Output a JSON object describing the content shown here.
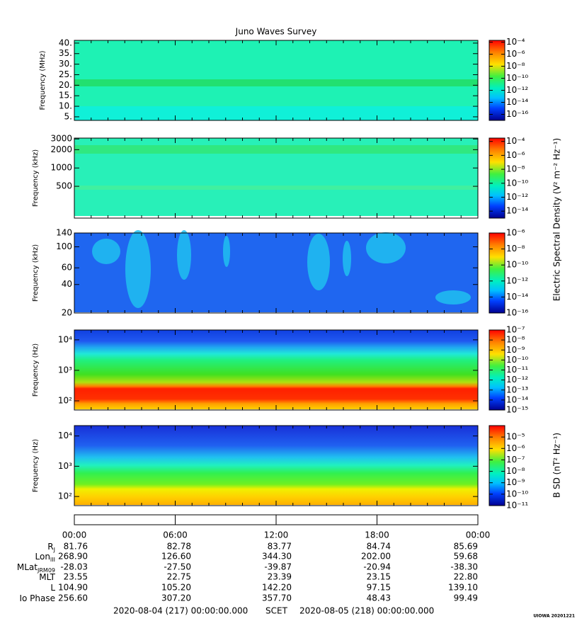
{
  "chart_data": {
    "type": "spectrogram",
    "title": "Juno Waves Survey",
    "xlim": [
      0,
      24
    ],
    "xticks": [
      {
        "value": 0,
        "label": "00:00"
      },
      {
        "value": 6,
        "label": "06:00"
      },
      {
        "value": 12,
        "label": "12:00"
      },
      {
        "value": 18,
        "label": "18:00"
      },
      {
        "value": 24,
        "label": "00:00"
      }
    ],
    "panels": [
      {
        "ylabel": "Frequency (MHz)",
        "ylog": false,
        "ylim": [
          3.3,
          41.3
        ],
        "yticks": [
          {
            "value": 5,
            "label": "5."
          },
          {
            "value": 10,
            "label": "10."
          },
          {
            "value": 15,
            "label": "15."
          },
          {
            "value": 20,
            "label": "20."
          },
          {
            "value": 25,
            "label": "25."
          },
          {
            "value": 30,
            "label": "30."
          },
          {
            "value": 35,
            "label": "35."
          },
          {
            "value": 40,
            "label": "40."
          }
        ],
        "clim": [
          1e-17,
          0.0002
        ],
        "cticks": [
          {
            "value": 0.0001,
            "label": "10⁻⁴"
          },
          {
            "value": 1e-06,
            "label": "10⁻⁶"
          },
          {
            "value": 1e-08,
            "label": "10⁻⁸"
          },
          {
            "value": 1e-10,
            "label": "10⁻¹⁰"
          },
          {
            "value": 1e-12,
            "label": "10⁻¹²"
          },
          {
            "value": 1e-14,
            "label": "10⁻¹⁴"
          },
          {
            "value": 1e-16,
            "label": "10⁻¹⁶"
          }
        ]
      },
      {
        "ylabel": "Frequency (kHz)",
        "ylog": true,
        "ylim": [
          150,
          3100
        ],
        "yticks": [
          500,
          1000,
          2000,
          3000
        ],
        "clim": [
          1e-15,
          0.0003
        ],
        "cticks": [
          {
            "value": 0.0001,
            "label": "10⁻⁴"
          },
          {
            "value": 1e-06,
            "label": "10⁻⁶"
          },
          {
            "value": 1e-08,
            "label": "10⁻⁸"
          },
          {
            "value": 1e-10,
            "label": "10⁻¹⁰"
          },
          {
            "value": 1e-12,
            "label": "10⁻¹²"
          },
          {
            "value": 1e-14,
            "label": "10⁻¹⁴"
          }
        ]
      },
      {
        "ylabel": "Frequency (kHz)",
        "ylog": true,
        "ylim": [
          20,
          140
        ],
        "yticks": [
          20,
          40,
          60,
          100,
          140
        ],
        "clim": [
          1e-16,
          1e-06
        ],
        "cticks": [
          {
            "value": 1e-06,
            "label": "10⁻⁶"
          },
          {
            "value": 1e-08,
            "label": "10⁻⁸"
          },
          {
            "value": 1e-10,
            "label": "10⁻¹⁰"
          },
          {
            "value": 1e-12,
            "label": "10⁻¹²"
          },
          {
            "value": 1e-14,
            "label": "10⁻¹⁴"
          },
          {
            "value": 1e-16,
            "label": "10⁻¹⁶"
          }
        ]
      },
      {
        "ylabel": "Frequency (Hz)",
        "ylog": true,
        "ylim": [
          50,
          21000
        ],
        "yticks": [
          {
            "value": 100,
            "label": "10²"
          },
          {
            "value": 1000,
            "label": "10³"
          },
          {
            "value": 10000,
            "label": "10⁴"
          }
        ],
        "clim": [
          1e-15,
          1e-07
        ],
        "cticks": [
          {
            "value": 1e-07,
            "label": "10⁻⁷"
          },
          {
            "value": 1e-08,
            "label": "10⁻⁸"
          },
          {
            "value": 1e-09,
            "label": "10⁻⁹"
          },
          {
            "value": 1e-10,
            "label": "10⁻¹⁰"
          },
          {
            "value": 1e-11,
            "label": "10⁻¹¹"
          },
          {
            "value": 1e-12,
            "label": "10⁻¹²"
          },
          {
            "value": 1e-13,
            "label": "10⁻¹³"
          },
          {
            "value": 1e-14,
            "label": "10⁻¹⁴"
          },
          {
            "value": 1e-15,
            "label": "10⁻¹⁵"
          }
        ]
      },
      {
        "ylabel": "Frequency (Hz)",
        "ylog": true,
        "ylim": [
          50,
          22000
        ],
        "yticks": [
          {
            "value": 100,
            "label": "10²"
          },
          {
            "value": 1000,
            "label": "10³"
          },
          {
            "value": 10000,
            "label": "10⁴"
          }
        ],
        "clim": [
          1e-11,
          0.0001
        ],
        "cticks": [
          {
            "value": 1e-05,
            "label": "10⁻⁵"
          },
          {
            "value": 1e-06,
            "label": "10⁻⁶"
          },
          {
            "value": 1e-07,
            "label": "10⁻⁷"
          },
          {
            "value": 1e-08,
            "label": "10⁻⁸"
          },
          {
            "value": 1e-09,
            "label": "10⁻⁹"
          },
          {
            "value": 1e-10,
            "label": "10⁻¹⁰"
          },
          {
            "value": 1e-11,
            "label": "10⁻¹¹"
          }
        ]
      }
    ],
    "colorbar_labels": {
      "electric": "Electric Spectral Density (V² m⁻² Hz⁻¹)",
      "magnetic": "B SD (nT² Hz⁻¹)"
    },
    "ephemeris": [
      {
        "name": "R",
        "sub": "J",
        "values": [
          "81.76",
          "82.78",
          "83.77",
          "84.74",
          "85.69"
        ]
      },
      {
        "name": "Lon",
        "sub": "III",
        "values": [
          "268.90",
          "126.60",
          "344.30",
          "202.00",
          "59.68"
        ]
      },
      {
        "name": "MLat",
        "sub": "JRM09",
        "values": [
          "-28.03",
          "-27.50",
          "-39.87",
          "-20.94",
          "-38.30"
        ]
      },
      {
        "name": "MLT",
        "values": [
          "23.55",
          "22.75",
          "23.39",
          "23.15",
          "22.80"
        ]
      },
      {
        "name": "L",
        "values": [
          "104.90",
          "105.20",
          "142.20",
          "97.15",
          "139.10"
        ]
      },
      {
        "name": "Io Phase",
        "values": [
          "256.60",
          "307.20",
          "357.70",
          "48.43",
          "99.49"
        ]
      }
    ],
    "footer": {
      "start": "2020-08-04 (217) 00:00:00.000",
      "scet": "SCET",
      "end": "2020-08-05 (218) 00:00:00.000",
      "credit": "UIOWA 20201221"
    }
  }
}
